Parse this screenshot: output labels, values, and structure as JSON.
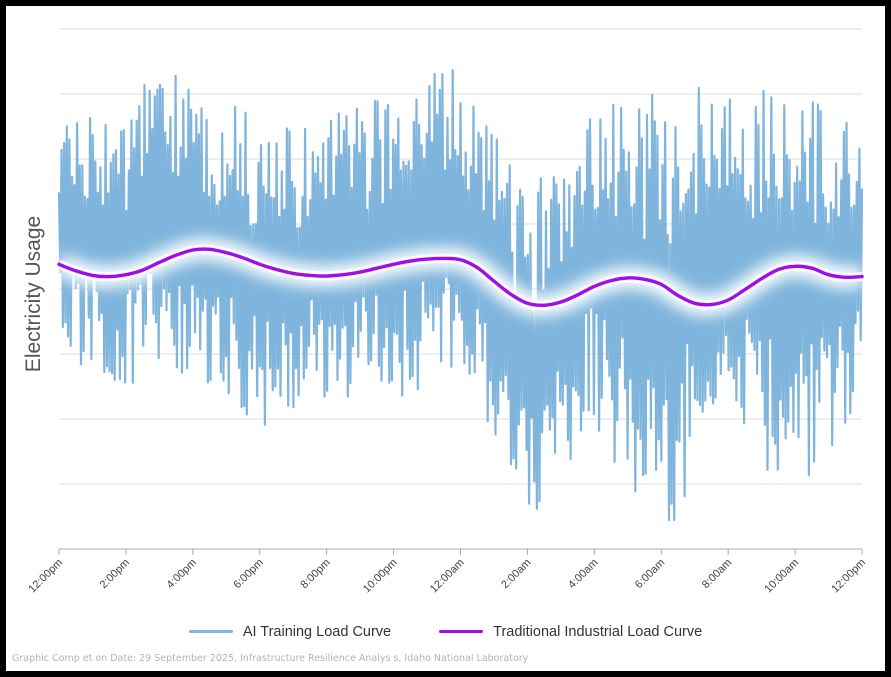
{
  "chart_data": {
    "type": "line",
    "title": "",
    "ylabel": "Electricity Usage",
    "xlabel": "",
    "x_ticks": [
      "12:00pm",
      "2:00pm",
      "4:00pm",
      "6:00pm",
      "8:00pm",
      "10:00pm",
      "12:00am",
      "2:00am",
      "4:00am",
      "6:00am",
      "8:00am",
      "10:00am",
      "12:00pm"
    ],
    "x_range_hours": [
      0,
      24
    ],
    "y_range": [
      0,
      8
    ],
    "y_gridlines": [
      1,
      2,
      3,
      4,
      5,
      6,
      7,
      8
    ],
    "y_tick_labels_shown": false,
    "grid": true,
    "legend_position": "bottom",
    "series": [
      {
        "name": "AI Training Load Curve",
        "color": "#7fb5dc",
        "style": "rapidly oscillating, high variance",
        "approx_envelope": [
          {
            "x": 0,
            "low": 3.1,
            "high": 6.8
          },
          {
            "x": 2,
            "low": 2.3,
            "high": 6.9
          },
          {
            "x": 3,
            "low": 2.9,
            "high": 7.4
          },
          {
            "x": 4,
            "low": 2.6,
            "high": 7.2
          },
          {
            "x": 6,
            "low": 1.8,
            "high": 6.6
          },
          {
            "x": 8,
            "low": 2.3,
            "high": 6.6
          },
          {
            "x": 10,
            "low": 2.2,
            "high": 7.2
          },
          {
            "x": 12,
            "low": 2.8,
            "high": 7.4
          },
          {
            "x": 14,
            "low": 0.3,
            "high": 5.4
          },
          {
            "x": 16,
            "low": 1.9,
            "high": 7.2
          },
          {
            "x": 18,
            "low": 0.0,
            "high": 7.2
          },
          {
            "x": 20,
            "low": 2.1,
            "high": 7.2
          },
          {
            "x": 22,
            "low": 0.4,
            "high": 7.2
          },
          {
            "x": 24,
            "low": 2.4,
            "high": 6.5
          }
        ]
      },
      {
        "name": "Traditional Industrial Load Curve",
        "color": "#a10cea",
        "x": [
          0,
          0.5,
          1,
          1.5,
          2,
          2.5,
          3,
          3.5,
          4,
          4.5,
          5,
          5.5,
          6,
          6.5,
          7,
          7.5,
          8,
          8.5,
          9,
          9.5,
          10,
          10.5,
          11,
          11.5,
          12,
          12.5,
          13,
          13.5,
          14,
          14.5,
          15,
          15.5,
          16,
          16.5,
          17,
          17.5,
          18,
          18.5,
          19,
          19.5,
          20,
          20.5,
          21,
          21.5,
          22,
          22.5,
          23,
          23.5,
          24
        ],
        "y": [
          4.38,
          4.28,
          4.21,
          4.19,
          4.22,
          4.29,
          4.41,
          4.52,
          4.6,
          4.61,
          4.56,
          4.48,
          4.38,
          4.3,
          4.24,
          4.21,
          4.2,
          4.22,
          4.26,
          4.32,
          4.38,
          4.43,
          4.46,
          4.47,
          4.45,
          4.33,
          4.12,
          3.92,
          3.78,
          3.75,
          3.8,
          3.91,
          4.04,
          4.13,
          4.17,
          4.15,
          4.07,
          3.9,
          3.78,
          3.76,
          3.83,
          3.99,
          4.16,
          4.3,
          4.35,
          4.32,
          4.22,
          4.18,
          4.19
        ]
      }
    ],
    "annotations": [
      "Graphic Comp et on Date: 29 September 2025, Infrastructure Resilience Analys s, Idaho National Laboratory"
    ]
  },
  "legend": {
    "ai_label": "AI Training Load Curve",
    "ind_label": "Traditional Industrial Load Curve"
  },
  "credit": "Graphic Comp et on Date: 29 September 2025, Infrastructure Resilience Analys s, Idaho National Laboratory"
}
